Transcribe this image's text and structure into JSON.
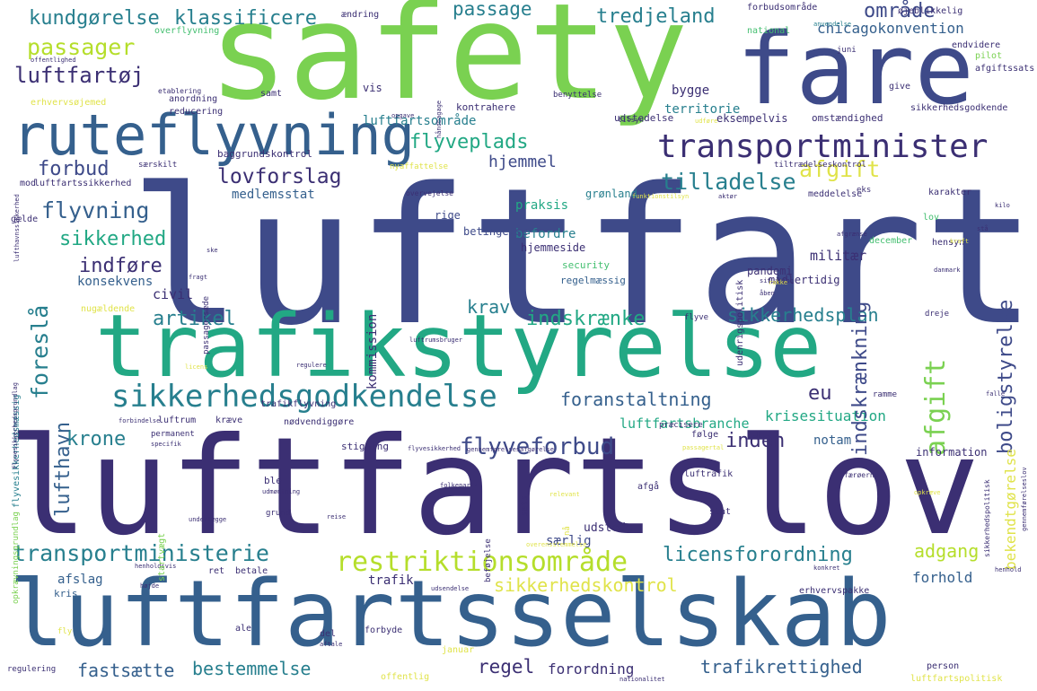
{
  "colors": {
    "dark_purple": "#3b2f73",
    "indigo": "#3e4a89",
    "blue": "#35608d",
    "teal": "#277f8e",
    "green_teal": "#22a884",
    "green": "#44bf70",
    "light_green": "#7ad151",
    "yellow": "#e0e34a",
    "pale_yellow": "#fde725"
  },
  "words": [
    "safety",
    "fare",
    "luftfart",
    "luftfartslov",
    "luftfartsselskab",
    "trafikstyrelse",
    "ruteflyvning",
    "transportminister",
    "sikkerhedsgodkendelse",
    "restriktionsområde",
    "transportministerie",
    "licensforordning",
    "flyveforbud",
    "sikkerhedskontrol",
    "foreslå",
    "afgift",
    "tilladelse",
    "flyveplads",
    "indskrænkning",
    "boligstyrelse",
    "dansk",
    "lovforslag",
    "lufthavn",
    "kundgørelse",
    "klassificere",
    "passager",
    "passage",
    "tredjeland",
    "område",
    "chicagokonvention",
    "luftfartøj",
    "forbud",
    "flyvning",
    "sikkerhed",
    "indføre",
    "artikel",
    "krone",
    "krav",
    "indskrænke",
    "sikkerhedsplan",
    "foranstaltning",
    "eu",
    "luftfartsbranche",
    "krisesituation",
    "inden",
    "adgang",
    "forhold",
    "bestemmelse",
    "regel",
    "forordning",
    "trafikrettighed",
    "fastsætte",
    "hjemmel",
    "praksis",
    "befordre",
    "kommission",
    "militær",
    "bekendtgørelse",
    "notam",
    "luftfartsområde",
    "territorie",
    "medlemsstat",
    "konsekvens",
    "civil",
    "afslag",
    "kris",
    "trafik",
    "særlig",
    "udstede",
    "information",
    "pandemi",
    "security",
    "regelmæssig",
    "midlertidig",
    "hjemmeside",
    "betingelse",
    "rige",
    "grønland",
    "bygge",
    "vis",
    "kontrahere",
    "udstedelse",
    "eksempelvis",
    "omstændighed",
    "sikkerhedsgodkende",
    "anordning",
    "reducering",
    "samt",
    "ændring",
    "forbudsområde",
    "øjeblikkelig",
    "anvendelse",
    "national",
    "juni",
    "endvidere",
    "pilot",
    "afgiftssats",
    "overflyvning",
    "offentlighed",
    "etablering",
    "benyttelse",
    "opgave",
    "tilsyn",
    "give",
    "erhvervsøjemed",
    "udføre",
    "særskilt",
    "nyaffattelse",
    "tiltrædelseskontrol",
    "eks",
    "kilo",
    "baggrundskontrol",
    "luftfartssikkerhed",
    "mod",
    "overvejelse",
    "funktionstilsyn",
    "aktør",
    "meddelelse",
    "karakter",
    "gælde",
    "udenrigspolitisk",
    "lov",
    "hensyn",
    "stå",
    "december",
    "kraft",
    "danmark",
    "afgrænse",
    "situation",
    "åben",
    "rakke",
    "passagersæde",
    "fragt",
    "ske",
    "nugældende",
    "luftrumsbruger",
    "flyve",
    "dreje",
    "licens",
    "regulere",
    "flyvesikkerhedsmæssig",
    "ramme",
    "falle",
    "forbindelse",
    "luftrum",
    "kræve",
    "nødvendiggøre",
    "trafikflyvning",
    "permanent",
    "specifik",
    "præcisere",
    "følge",
    "stigning",
    "flyvesikkerhed",
    "gennemførelsesafgørelse",
    "passagertal",
    "folkeparti",
    "sats",
    "afgå",
    "luftrafik",
    "færøerne",
    "opkræve",
    "relevant",
    "udmøntning",
    "ble",
    "beføjelse",
    "grund",
    "reise",
    "finde",
    "nå",
    "stat",
    "overensstemmelse",
    "underlægge",
    "startvægt",
    "opkrævningsgrundlag",
    "henholdsvis",
    "konkret",
    "ret",
    "betale",
    "udsendelse",
    "henhold",
    "erhvervspakke",
    "højde",
    "fly",
    "forbyde",
    "ale",
    "del",
    "aftale",
    "januar",
    "person",
    "regulering",
    "offentlig",
    "nationalitet",
    "luftfartspolitisk",
    "sikkerhedspolitisk",
    "gennemførelseslov",
    "beslutning",
    "håndbagage",
    "lufthavnssikkerhed",
    "afgiftsfri",
    "flyvesikkerhedsgrundlag"
  ]
}
